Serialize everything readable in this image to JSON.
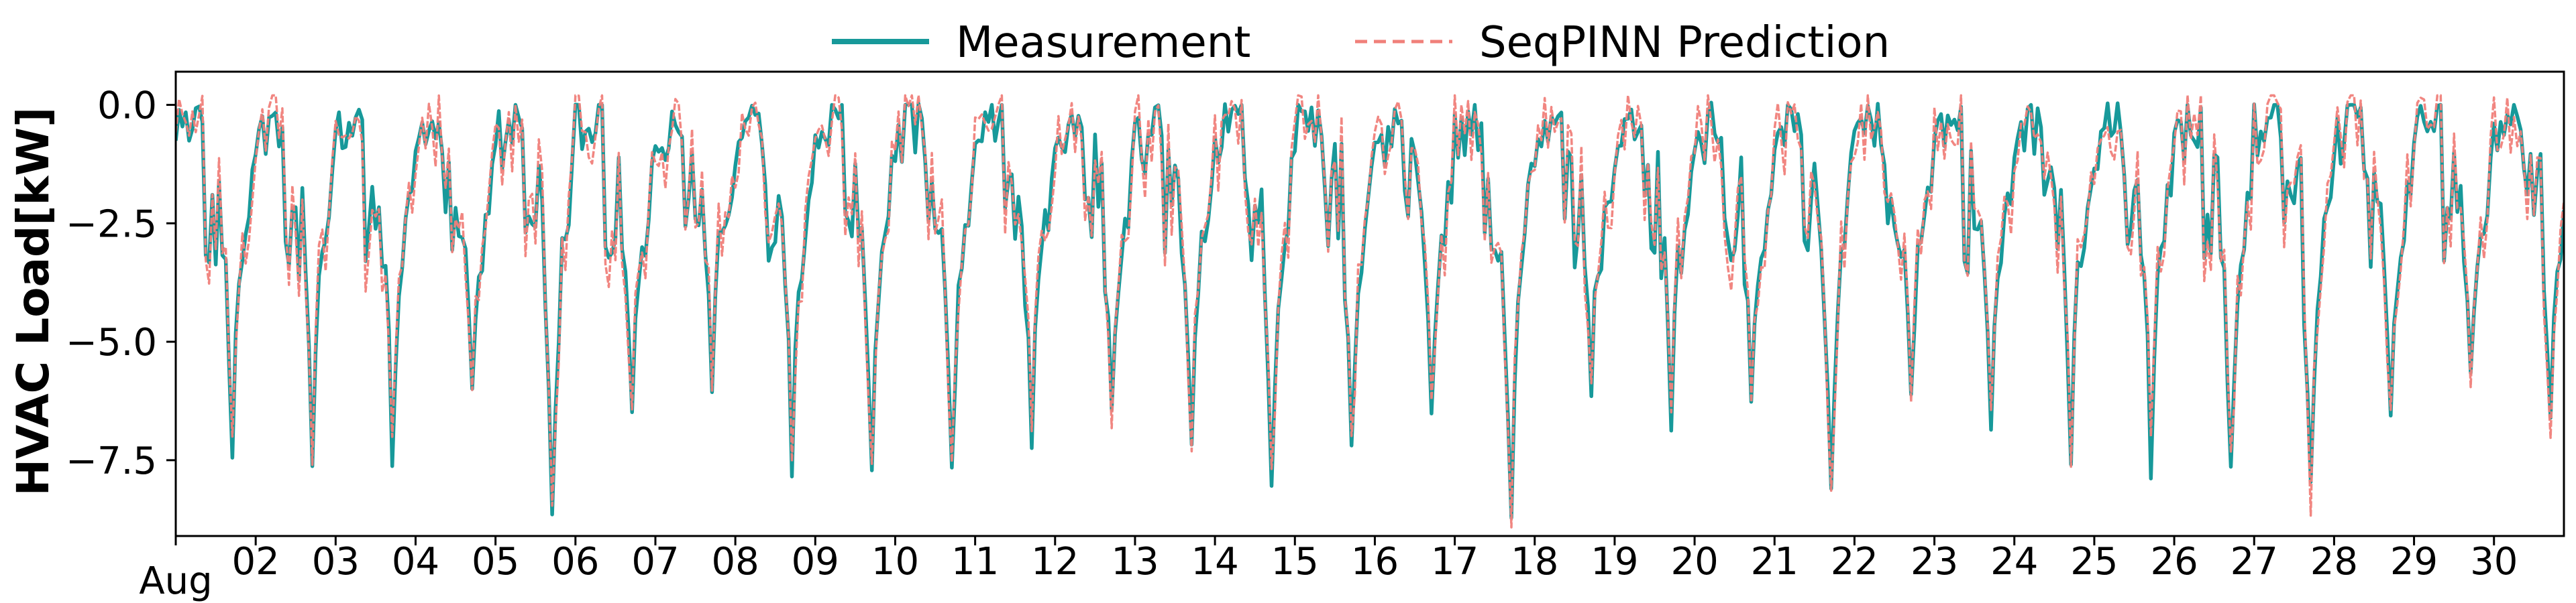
{
  "chart_data": {
    "type": "line",
    "title": "",
    "xlabel": "",
    "ylabel": "HVAC Load[kW]",
    "x_ticks": [
      "Aug",
      "02",
      "03",
      "04",
      "05",
      "06",
      "07",
      "08",
      "09",
      "10",
      "11",
      "12",
      "13",
      "14",
      "15",
      "16",
      "17",
      "18",
      "19",
      "20",
      "21",
      "22",
      "23",
      "24",
      "25",
      "26",
      "27",
      "28",
      "29",
      "30"
    ],
    "y_ticks": [
      "0.0",
      "−2.5",
      "−5.0",
      "−7.5"
    ],
    "y_tick_values": [
      0,
      -2.5,
      -5,
      -7.5
    ],
    "xlim": [
      "Aug 01",
      "Aug 30 ~21:00"
    ],
    "ylim": [
      -9.1,
      0.7
    ],
    "grid": false,
    "legend_position": "top-center",
    "daily_minima": [
      -7.0,
      -7.55,
      -7.35,
      -6.35,
      -8.65,
      -6.25,
      -6.05,
      -7.3,
      -7.55,
      -7.85,
      -7.15,
      -6.65,
      -7.1,
      -7.8,
      -7.05,
      -6.45,
      -8.85,
      -5.95,
      -6.4,
      -6.3,
      -8.25,
      -6.3,
      -6.6,
      -7.4,
      -7.35,
      -7.6,
      -8.45,
      -6.55,
      -6.0,
      -6.95
    ],
    "series": [
      {
        "name": "Measurement",
        "color": "#17999a",
        "style": "solid",
        "values_summary": "hourly HVAC cooling load (kW), near 0 at night, dropping to a daily minimum each afternoon"
      },
      {
        "name": "SeqPINN Prediction",
        "color": "#f0807a",
        "style": "dashed",
        "values_summary": "hourly predicted HVAC load (kW), closely tracking the measurement"
      }
    ]
  }
}
